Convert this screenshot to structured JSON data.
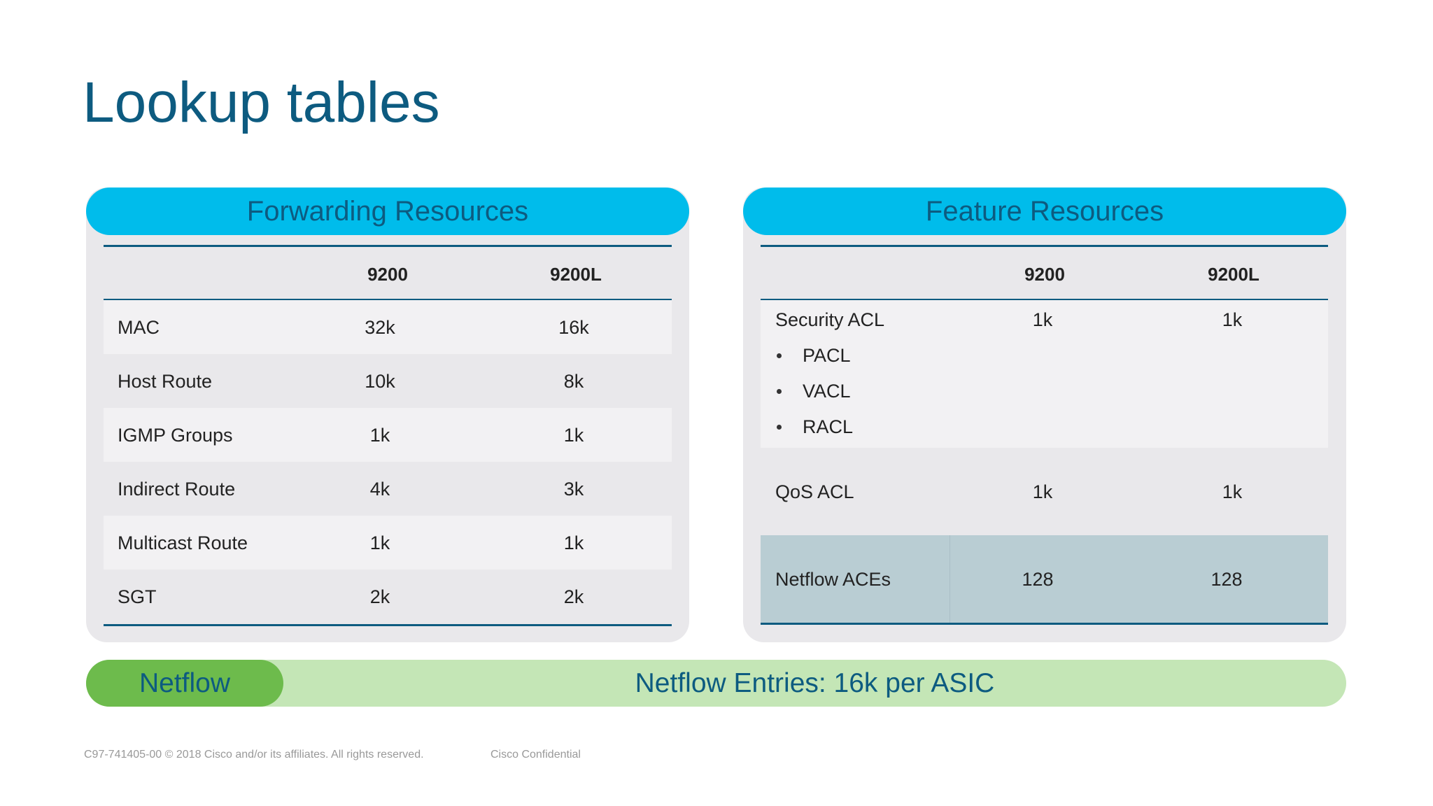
{
  "title": "Lookup tables",
  "forwarding": {
    "title": "Forwarding Resources",
    "columns": [
      "9200",
      "9200L"
    ],
    "rows": [
      [
        "MAC",
        "32k",
        "16k"
      ],
      [
        "Host Route",
        "10k",
        "8k"
      ],
      [
        "IGMP Groups",
        "1k",
        "1k"
      ],
      [
        "Indirect Route",
        "4k",
        "3k"
      ],
      [
        "Multicast Route",
        "1k",
        "1k"
      ],
      [
        "SGT",
        "2k",
        "2k"
      ]
    ]
  },
  "feature": {
    "title": "Feature Resources",
    "columns": [
      "9200",
      "9200L"
    ],
    "rows": [
      {
        "label": "Security ACL",
        "bullets": [
          "PACL",
          "VACL",
          "RACL"
        ],
        "values": [
          "1k",
          "1k"
        ]
      },
      {
        "label": "QoS ACL",
        "values": [
          "1k",
          "1k"
        ]
      },
      {
        "label": "Netflow ACEs",
        "values": [
          "128",
          "128"
        ]
      }
    ]
  },
  "netflow": {
    "label": "Netflow",
    "text": "Netflow Entries: 16k per ASIC"
  },
  "footer": {
    "text": "C97-741405-00 © 2018  Cisco and/or its affiliates. All rights reserved.",
    "confidential": "Cisco Confidential"
  }
}
